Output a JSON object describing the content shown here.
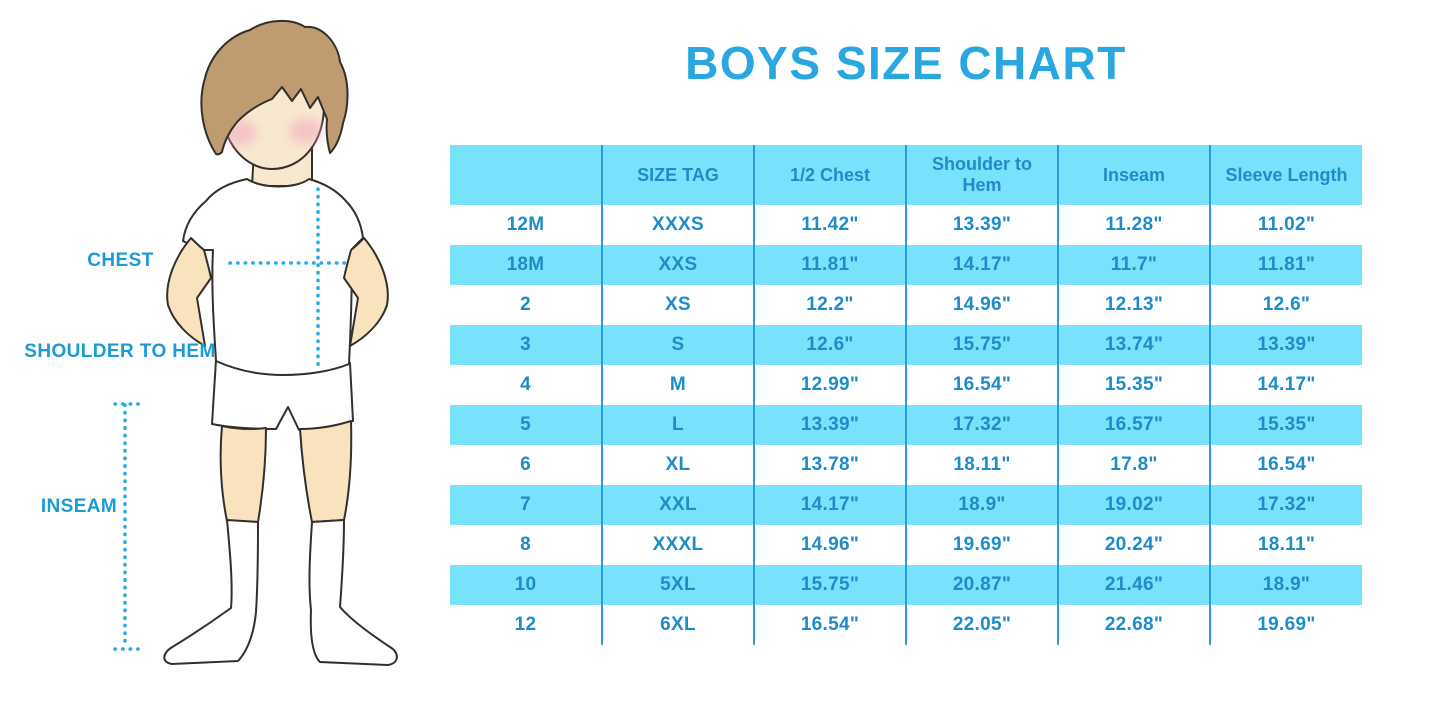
{
  "title": "BOYS SIZE CHART",
  "figure": {
    "labels": {
      "chest": "CHEST",
      "shoulder_to_hem": "SHOULDER TO HEM",
      "inseam": "INSEAM"
    }
  },
  "chart_data": {
    "type": "table",
    "title": "BOYS SIZE CHART",
    "columns": [
      "",
      "SIZE TAG",
      "1/2 Chest",
      "Shoulder to Hem",
      "Inseam",
      "Sleeve Length"
    ],
    "rows": [
      [
        "12M",
        "XXXS",
        "11.42\"",
        "13.39\"",
        "11.28\"",
        "11.02\""
      ],
      [
        "18M",
        "XXS",
        "11.81\"",
        "14.17\"",
        "11.7\"",
        "11.81\""
      ],
      [
        "2",
        "XS",
        "12.2\"",
        "14.96\"",
        "12.13\"",
        "12.6\""
      ],
      [
        "3",
        "S",
        "12.6\"",
        "15.75\"",
        "13.74\"",
        "13.39\""
      ],
      [
        "4",
        "M",
        "12.99\"",
        "16.54\"",
        "15.35\"",
        "14.17\""
      ],
      [
        "5",
        "L",
        "13.39\"",
        "17.32\"",
        "16.57\"",
        "15.35\""
      ],
      [
        "6",
        "XL",
        "13.78\"",
        "18.11\"",
        "17.8\"",
        "16.54\""
      ],
      [
        "7",
        "XXL",
        "14.17\"",
        "18.9\"",
        "19.02\"",
        "17.32\""
      ],
      [
        "8",
        "XXXL",
        "14.96\"",
        "19.69\"",
        "20.24\"",
        "18.11\""
      ],
      [
        "10",
        "5XL",
        "15.75\"",
        "20.87\"",
        "21.46\"",
        "18.9\""
      ],
      [
        "12",
        "6XL",
        "16.54\"",
        "22.05\"",
        "22.68\"",
        "19.69\""
      ]
    ],
    "row_shading": "alternating white / light-cyan, starting white",
    "gridlines": "vertical column separators only"
  },
  "colors": {
    "title_blue": "#2AA7E1",
    "table_fill_cyan": "#78E1FB",
    "table_text_blue": "#1E8CC8",
    "table_line_blue": "#2D9CD4",
    "label_blue": "#1C9AD6",
    "dotted_line_blue": "#2AACE3",
    "skin": "#F8E3BE",
    "face_skin": "#F8E8D0",
    "hair_brown": "#BE9B70",
    "blush_pink": "#F0A9BE",
    "outline": "#332F2B"
  }
}
